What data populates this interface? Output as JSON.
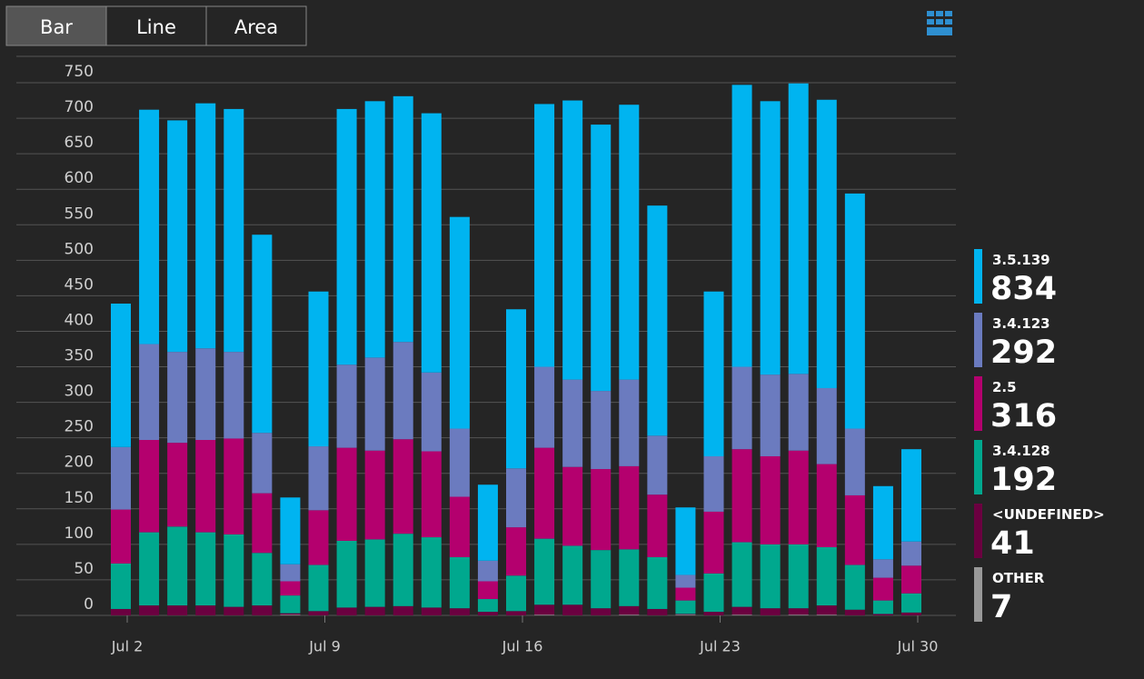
{
  "buttons": [
    "Bar",
    "Line",
    "Area"
  ],
  "chart_data": {
    "type": "bar",
    "stacked": true,
    "grid": true,
    "legend": "right",
    "categories": [
      "Jul 2",
      null,
      null,
      null,
      null,
      null,
      null,
      "Jul 9",
      null,
      null,
      null,
      null,
      null,
      null,
      "Jul 16",
      null,
      null,
      null,
      null,
      null,
      null,
      "Jul 23",
      null,
      null,
      null,
      null,
      null,
      null,
      "Jul 30"
    ],
    "ylim": [
      0,
      750
    ],
    "yticks": [
      0,
      50,
      100,
      150,
      200,
      250,
      300,
      350,
      400,
      450,
      500,
      550,
      600,
      650,
      700,
      750
    ],
    "series": [
      {
        "name": "3.5.139",
        "total": 834,
        "color": "#00b4f0",
        "values": [
          202,
          330,
          326,
          345,
          342,
          279,
          94,
          218,
          360,
          361,
          346,
          365,
          298,
          107,
          224,
          370,
          393,
          375,
          387,
          324,
          95,
          232,
          397,
          385,
          409,
          406,
          331,
          103,
          130
        ]
      },
      {
        "name": "3.4.123",
        "total": 292,
        "color": "#6b7bbf",
        "values": [
          88,
          135,
          128,
          129,
          122,
          85,
          24,
          90,
          117,
          131,
          137,
          111,
          96,
          29,
          83,
          114,
          123,
          110,
          122,
          83,
          18,
          78,
          116,
          115,
          108,
          107,
          94,
          26,
          34
        ]
      },
      {
        "name": "2.5",
        "total": 316,
        "color": "#b4006e",
        "values": [
          76,
          130,
          118,
          130,
          135,
          84,
          20,
          77,
          131,
          125,
          133,
          121,
          85,
          25,
          68,
          128,
          111,
          114,
          117,
          88,
          18,
          87,
          131,
          124,
          132,
          117,
          98,
          32,
          39
        ]
      },
      {
        "name": "3.4.128",
        "total": 192,
        "color": "#00a88e",
        "values": [
          64,
          103,
          111,
          103,
          102,
          74,
          25,
          65,
          94,
          95,
          102,
          99,
          72,
          18,
          50,
          93,
          83,
          82,
          80,
          73,
          19,
          54,
          91,
          90,
          90,
          82,
          63,
          19,
          27
        ]
      },
      {
        "name": "<UNDEFINED>",
        "total": 41,
        "color": "#6b0040",
        "values": [
          9,
          14,
          14,
          14,
          12,
          14,
          2,
          6,
          11,
          12,
          13,
          11,
          10,
          5,
          6,
          14,
          15,
          10,
          12,
          9,
          1,
          5,
          11,
          10,
          9,
          13,
          8,
          2,
          4
        ]
      },
      {
        "name": "OTHER",
        "total": 7,
        "color": "#999999",
        "values": [
          0,
          0,
          0,
          0,
          0,
          0,
          1,
          0,
          0,
          0,
          0,
          0,
          0,
          0,
          0,
          1,
          0,
          0,
          1,
          0,
          1,
          0,
          1,
          0,
          1,
          1,
          0,
          0,
          0
        ]
      }
    ]
  }
}
